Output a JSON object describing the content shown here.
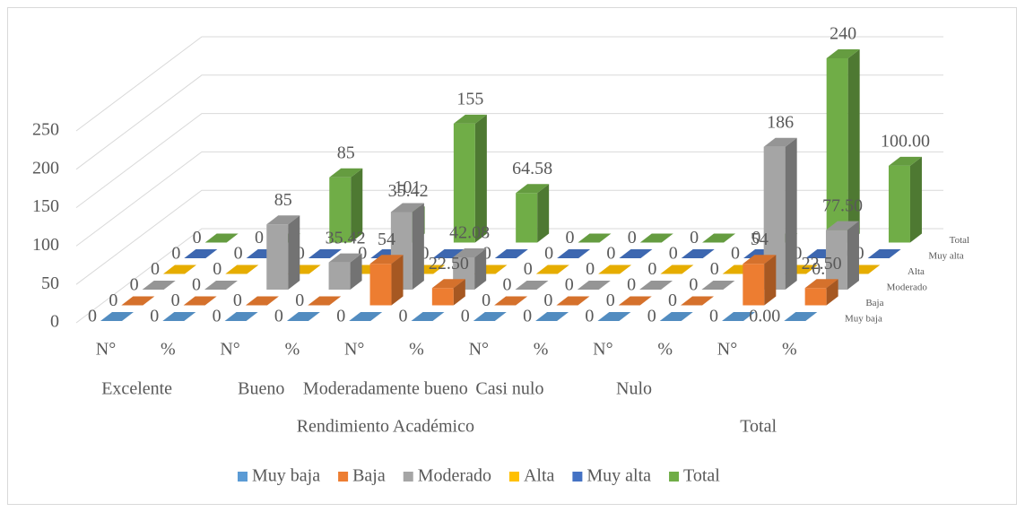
{
  "chart_data": {
    "type": "bar3d",
    "categories": [
      "N°",
      "%",
      "N°",
      "%",
      "N°",
      "%",
      "N°",
      "%",
      "N°",
      "%",
      "N°",
      "%"
    ],
    "category_groups": [
      "Excelente",
      "Bueno",
      "Moderadamente bueno",
      "Casi nulo",
      "Nulo"
    ],
    "category_super_groups": [
      "Rendimiento Académico",
      "Total"
    ],
    "series": [
      {
        "name": "Muy baja",
        "color": "#5b9bd5",
        "values": [
          0,
          0,
          0,
          0,
          0,
          0,
          0,
          0,
          0,
          0,
          0,
          0
        ],
        "value_labels": [
          "0",
          "0",
          "0",
          "0",
          "0",
          "0",
          "0",
          "0",
          "0",
          "0",
          "0",
          "0.00"
        ]
      },
      {
        "name": "Baja",
        "color": "#ed7d31",
        "values": [
          0,
          0,
          0,
          0,
          54,
          22.5,
          0,
          0,
          0,
          0,
          54,
          22.5
        ],
        "value_labels": [
          "0",
          "0",
          "0",
          "0",
          "54",
          "22.50",
          "0",
          "0",
          "0",
          "0",
          "54",
          "22.50"
        ]
      },
      {
        "name": "Moderado",
        "color": "#a5a5a5",
        "values": [
          0,
          0,
          85,
          35.42,
          101,
          42.08,
          0,
          0,
          0,
          0,
          186,
          77.5
        ],
        "value_labels": [
          "0",
          "0",
          "85",
          "35.42",
          "101",
          "42.08",
          "0",
          "0",
          "0",
          "0",
          "186",
          "77.50"
        ]
      },
      {
        "name": "Alta",
        "color": "#ffc000",
        "values": [
          0,
          0,
          0,
          0,
          0,
          0,
          0,
          0,
          0,
          0,
          0,
          0
        ],
        "value_labels": [
          "0",
          "0",
          "0",
          "0",
          "0",
          "0",
          "0",
          "0",
          "0",
          "0",
          "0",
          "0.00"
        ]
      },
      {
        "name": "Muy alta",
        "color": "#4472c4",
        "values": [
          0,
          0,
          0,
          0,
          0,
          0,
          0,
          0,
          0,
          0,
          0,
          0
        ],
        "value_labels": [
          "0",
          "0",
          "0",
          "0",
          "0",
          "0",
          "0",
          "0",
          "0",
          "0",
          "0",
          "0.00"
        ]
      },
      {
        "name": "Total",
        "color": "#70ad47",
        "values": [
          0,
          0,
          85,
          35.42,
          155,
          64.58,
          0,
          0,
          0,
          0,
          240,
          100
        ],
        "value_labels": [
          "0",
          "0",
          "85",
          "35.42",
          "155",
          "64.58",
          "0",
          "0",
          "0",
          "0",
          "240",
          "100.00"
        ]
      }
    ],
    "ylim": [
      0,
      250
    ],
    "yticks": [
      0,
      50,
      100,
      150,
      200,
      250
    ],
    "grid": true,
    "legend": "bottom"
  }
}
